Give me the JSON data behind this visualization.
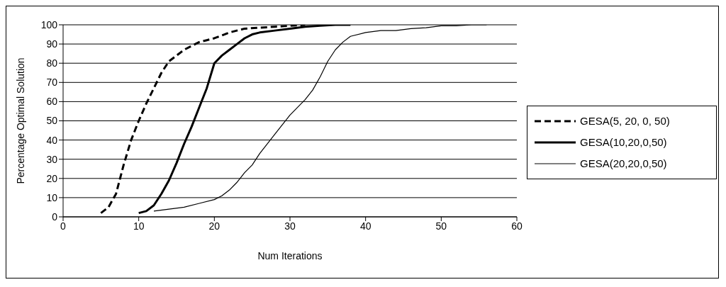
{
  "chart_data": {
    "type": "line",
    "xlabel": "Num Iterations",
    "ylabel": "Percentage Optimal Solution",
    "xlim": [
      0,
      60
    ],
    "xticks": [
      0,
      10,
      20,
      30,
      40,
      50,
      60
    ],
    "ylim": [
      0,
      100
    ],
    "yticks": [
      0,
      10,
      20,
      30,
      40,
      50,
      60,
      70,
      80,
      90,
      100
    ],
    "grid": "y",
    "legend": "right",
    "marker": "none",
    "series": [
      {
        "name": "GESA(5, 20, 0, 50)",
        "color": "#000000",
        "line_style": "dashed",
        "x": [
          5,
          6,
          7,
          8,
          9,
          10,
          11,
          12,
          13,
          14,
          15,
          16,
          17,
          18,
          19,
          20,
          22,
          24,
          26,
          28,
          30,
          32
        ],
        "values": [
          2,
          5,
          12,
          27,
          40,
          50,
          59,
          67,
          75,
          81,
          84,
          87,
          89,
          91,
          92,
          93,
          96,
          98,
          98.5,
          99,
          99.5,
          100
        ]
      },
      {
        "name": "GESA(10,20,0,50)",
        "color": "#000000",
        "line_style": "solid",
        "x": [
          10,
          11,
          12,
          13,
          14,
          15,
          16,
          17,
          18,
          19,
          20,
          21,
          22,
          23,
          24,
          25,
          26,
          28,
          30,
          32,
          34,
          36,
          38
        ],
        "values": [
          2,
          3,
          6,
          12,
          19,
          28,
          38,
          47,
          57,
          67,
          80,
          84,
          87,
          90,
          93,
          95,
          96,
          97,
          98,
          99,
          99.5,
          100,
          100
        ]
      },
      {
        "name": "GESA(20,20,0,50)",
        "color": "#000000",
        "line_style": "solid",
        "x": [
          12,
          14,
          16,
          18,
          20,
          21,
          22,
          23,
          24,
          25,
          26,
          28,
          30,
          32,
          33,
          34,
          35,
          36,
          37,
          38,
          40,
          42,
          44,
          46,
          48,
          50,
          52,
          54,
          56
        ],
        "values": [
          3,
          4,
          5,
          7,
          9,
          11,
          14,
          18,
          23,
          27,
          33,
          43,
          53,
          61,
          66,
          73,
          81,
          87,
          91,
          94,
          96,
          97,
          97,
          98,
          98.5,
          99.5,
          99.5,
          100,
          100
        ]
      }
    ]
  }
}
